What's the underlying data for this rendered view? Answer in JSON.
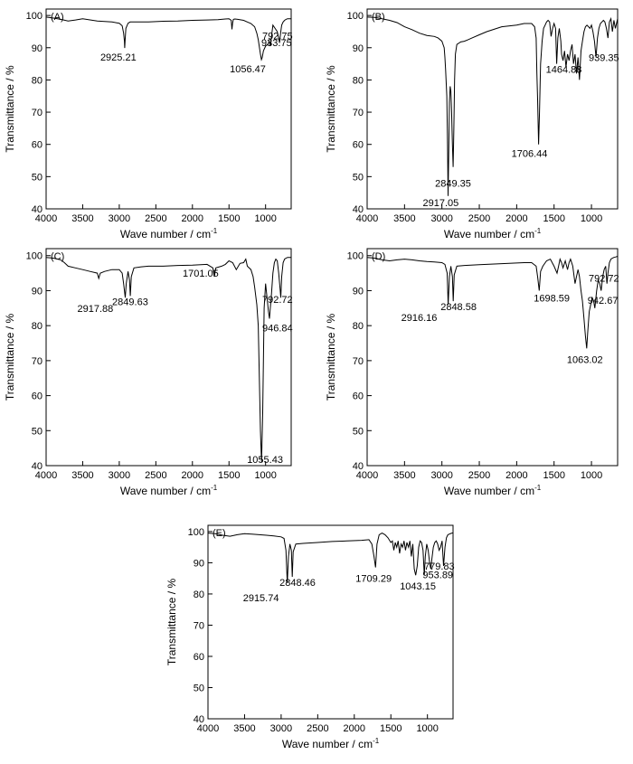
{
  "figure": {
    "ylabel": "Transmittance / %",
    "xlabel": "Wave number / cm",
    "xlabel_sup": "-1",
    "xticks": [
      4000,
      3500,
      3000,
      2500,
      2000,
      1500,
      1000
    ],
    "yticks": [
      40,
      50,
      60,
      70,
      80,
      90,
      100
    ],
    "xlim": [
      4000,
      650
    ],
    "ylim": [
      40,
      102
    ],
    "line_color": "#000000"
  },
  "chart_data": [
    {
      "type": "line",
      "panel": "(A)",
      "x": [
        4000,
        3900,
        3800,
        3700,
        3600,
        3500,
        3300,
        3100,
        3000,
        2960,
        2940,
        2930,
        2925.21,
        2920,
        2910,
        2880,
        2850,
        2800,
        2600,
        2400,
        2200,
        2000,
        1800,
        1650,
        1600,
        1550,
        1500,
        1470,
        1460,
        1450,
        1440,
        1420,
        1380,
        1300,
        1250,
        1200,
        1150,
        1120,
        1100,
        1080,
        1070,
        1056.47,
        1045,
        1030,
        1000,
        970,
        950,
        933.75,
        920,
        900,
        870,
        840,
        820,
        810,
        792.75,
        780,
        760,
        740,
        720,
        700,
        650
      ],
      "y": [
        99.5,
        99.2,
        98.8,
        98.3,
        98.6,
        99.0,
        98.3,
        98.0,
        97.6,
        96.8,
        94.5,
        92.0,
        89.9,
        92.5,
        96.0,
        97.6,
        98.0,
        98.0,
        98.0,
        98.2,
        98.3,
        98.5,
        98.6,
        98.7,
        98.8,
        98.9,
        99.0,
        98.5,
        95.7,
        97.8,
        98.8,
        98.9,
        98.8,
        98.5,
        98.0,
        97.5,
        96.5,
        94.5,
        92.5,
        89.5,
        88.0,
        86.3,
        87.0,
        89.0,
        90.5,
        91.0,
        92.0,
        90.5,
        93.5,
        97.0,
        96.0,
        95.0,
        93.0,
        91.5,
        95.0,
        97.0,
        98.0,
        98.5,
        98.8,
        99.0,
        99.0
      ],
      "peaks": [
        {
          "label": "2925.21",
          "x": 2925.21,
          "y": 89.9
        },
        {
          "label": "1056.47",
          "x": 1056.47,
          "y": 86.3
        },
        {
          "label": "933.75",
          "x": 933.75,
          "y": 90.5
        },
        {
          "label": "792.75",
          "x": 792.75,
          "y": 91.5
        }
      ]
    },
    {
      "type": "line",
      "panel": "(B)",
      "x": [
        4000,
        3900,
        3800,
        3700,
        3600,
        3500,
        3400,
        3300,
        3200,
        3100,
        3050,
        3000,
        2970,
        2960,
        2950,
        2935,
        2925,
        2917.05,
        2910,
        2900,
        2890,
        2880,
        2870,
        2860,
        2849.35,
        2840,
        2830,
        2820,
        2800,
        2750,
        2700,
        2650,
        2600,
        2500,
        2400,
        2200,
        2000,
        1900,
        1800,
        1760,
        1740,
        1730,
        1720,
        1706.44,
        1695,
        1680,
        1660,
        1640,
        1620,
        1600,
        1580,
        1560,
        1540,
        1520,
        1500,
        1480,
        1464.88,
        1450,
        1430,
        1410,
        1400,
        1380,
        1360,
        1340,
        1320,
        1300,
        1280,
        1260,
        1240,
        1220,
        1200,
        1180,
        1160,
        1140,
        1120,
        1100,
        1080,
        1060,
        1040,
        1020,
        1000,
        980,
        960,
        939.35,
        920,
        900,
        880,
        860,
        840,
        820,
        800,
        780,
        760,
        740,
        720,
        700,
        680,
        650
      ],
      "y": [
        99.5,
        99.4,
        99.0,
        98.5,
        97.8,
        96.5,
        95.6,
        94.5,
        93.8,
        93.5,
        93.0,
        92.0,
        90.0,
        87.0,
        83.0,
        75.0,
        60.0,
        44.0,
        55.0,
        73.0,
        78.0,
        76.5,
        70.0,
        60.0,
        53.0,
        65.0,
        80.0,
        88.0,
        91.0,
        91.8,
        92.0,
        92.5,
        93.0,
        94.0,
        95.0,
        96.5,
        97.0,
        97.5,
        97.5,
        96.5,
        93.0,
        82.0,
        74.0,
        60.0,
        70.0,
        85.0,
        92.0,
        96.0,
        97.0,
        98.0,
        98.5,
        98.0,
        93.5,
        96.0,
        97.5,
        96.0,
        85.0,
        93.0,
        96.0,
        92.0,
        88.0,
        86.0,
        89.0,
        84.0,
        88.0,
        86.0,
        89.0,
        91.0,
        85.0,
        88.0,
        82.0,
        87.0,
        80.0,
        89.0,
        92.0,
        95.0,
        96.5,
        97.0,
        96.5,
        96.0,
        97.0,
        95.0,
        92.0,
        87.0,
        93.0,
        96.0,
        97.5,
        98.0,
        98.5,
        98.0,
        96.0,
        93.0,
        98.0,
        99.0,
        95.0,
        98.5,
        96.0,
        99.0
      ],
      "peaks": [
        {
          "label": "2917.05",
          "x": 2917.05,
          "y": 44.0
        },
        {
          "label": "2849.35",
          "x": 2849.35,
          "y": 53.0
        },
        {
          "label": "1706.44",
          "x": 1706.44,
          "y": 60.0
        },
        {
          "label": "1464.88",
          "x": 1464.88,
          "y": 85.0
        },
        {
          "label": "939.35",
          "x": 939.35,
          "y": 87.0
        }
      ]
    },
    {
      "type": "line",
      "panel": "(C)",
      "x": [
        4000,
        3900,
        3800,
        3750,
        3700,
        3600,
        3500,
        3400,
        3300,
        3280,
        3260,
        3200,
        3100,
        3000,
        2960,
        2940,
        2917.88,
        2905,
        2880,
        2860,
        2849.63,
        2835,
        2800,
        2700,
        2600,
        2400,
        2200,
        2000,
        1800,
        1720,
        1701.05,
        1680,
        1600,
        1550,
        1500,
        1450,
        1400,
        1350,
        1300,
        1270,
        1250,
        1200,
        1170,
        1150,
        1120,
        1100,
        1090,
        1080,
        1070,
        1060,
        1055.43,
        1050,
        1040,
        1030,
        1020,
        1000,
        980,
        960,
        946.84,
        935,
        920,
        900,
        880,
        860,
        840,
        820,
        800,
        792.72,
        780,
        760,
        740,
        720,
        700,
        680,
        650
      ],
      "y": [
        99.5,
        99.3,
        98.8,
        98.0,
        97.0,
        96.5,
        96.0,
        95.5,
        95.0,
        93.5,
        95.0,
        95.5,
        96.0,
        96.0,
        95.0,
        92.0,
        88.0,
        92.0,
        95.5,
        93.0,
        88.5,
        94.0,
        96.5,
        96.8,
        97.0,
        97.0,
        97.2,
        97.3,
        97.5,
        96.5,
        94.0,
        96.5,
        97.0,
        97.5,
        98.5,
        98.0,
        96.0,
        97.8,
        98.0,
        99.0,
        97.0,
        96.0,
        94.0,
        91.0,
        86.0,
        80.0,
        70.0,
        60.0,
        50.0,
        44.0,
        41.0,
        45.0,
        55.0,
        70.0,
        85.0,
        92.0,
        88.0,
        84.0,
        82.0,
        85.0,
        89.0,
        95.0,
        98.0,
        99.0,
        98.5,
        95.0,
        90.0,
        88.0,
        94.0,
        98.0,
        99.0,
        99.3,
        99.5,
        99.5,
        99.5
      ],
      "peaks": [
        {
          "label": "2917.88",
          "x": 2917.88,
          "y": 88.0
        },
        {
          "label": "2849.63",
          "x": 2849.63,
          "y": 88.5
        },
        {
          "label": "1701.05",
          "x": 1701.05,
          "y": 94.0
        },
        {
          "label": "1055.43",
          "x": 1055.43,
          "y": 41.0
        },
        {
          "label": "946.84",
          "x": 946.84,
          "y": 82.0
        },
        {
          "label": "792.72",
          "x": 792.72,
          "y": 88.0
        }
      ]
    },
    {
      "type": "line",
      "panel": "(D)",
      "x": [
        4000,
        3900,
        3800,
        3700,
        3600,
        3500,
        3400,
        3300,
        3200,
        3100,
        3000,
        2960,
        2930,
        2916.16,
        2900,
        2880,
        2860,
        2848.58,
        2835,
        2800,
        2700,
        2500,
        2300,
        2100,
        1900,
        1800,
        1740,
        1720,
        1698.59,
        1680,
        1650,
        1600,
        1550,
        1500,
        1460,
        1440,
        1420,
        1400,
        1380,
        1350,
        1320,
        1300,
        1280,
        1250,
        1220,
        1200,
        1180,
        1160,
        1140,
        1120,
        1100,
        1080,
        1063.02,
        1050,
        1030,
        1010,
        990,
        970,
        955,
        942.67,
        930,
        910,
        890,
        870,
        850,
        830,
        810,
        792.72,
        780,
        760,
        740,
        720,
        700,
        680,
        650
      ],
      "y": [
        99.5,
        99.3,
        98.8,
        98.5,
        98.8,
        99.0,
        98.8,
        98.5,
        98.3,
        98.2,
        98.0,
        97.5,
        95.0,
        86.0,
        94.0,
        97.0,
        94.0,
        87.0,
        94.5,
        97.0,
        97.2,
        97.4,
        97.6,
        97.8,
        98.0,
        98.0,
        97.0,
        94.0,
        90.0,
        95.5,
        97.0,
        98.5,
        99.0,
        97.0,
        95.0,
        97.0,
        99.0,
        98.0,
        96.5,
        98.5,
        96.0,
        98.0,
        99.0,
        97.0,
        92.0,
        94.0,
        96.0,
        94.0,
        90.0,
        87.0,
        82.0,
        77.0,
        73.5,
        78.0,
        84.0,
        86.0,
        88.0,
        87.0,
        85.0,
        87.5,
        90.0,
        93.0,
        92.0,
        90.0,
        94.0,
        96.0,
        97.0,
        92.0,
        95.0,
        98.0,
        99.0,
        99.3,
        99.5,
        99.6,
        99.8
      ],
      "peaks": [
        {
          "label": "2916.16",
          "x": 2916.16,
          "y": 86.0
        },
        {
          "label": "2848.58",
          "x": 2848.58,
          "y": 87.0
        },
        {
          "label": "1698.59",
          "x": 1698.59,
          "y": 90.0
        },
        {
          "label": "1063.02",
          "x": 1063.02,
          "y": 73.5
        },
        {
          "label": "942.67",
          "x": 942.67,
          "y": 87.5
        },
        {
          "label": "792.72",
          "x": 792.72,
          "y": 92.0
        }
      ]
    },
    {
      "type": "line",
      "panel": "(E)",
      "x": [
        4000,
        3900,
        3800,
        3700,
        3600,
        3500,
        3400,
        3300,
        3200,
        3100,
        3000,
        2960,
        2935,
        2915.74,
        2900,
        2880,
        2860,
        2848.46,
        2835,
        2800,
        2700,
        2500,
        2300,
        2100,
        1900,
        1800,
        1760,
        1730,
        1709.29,
        1690,
        1660,
        1620,
        1580,
        1540,
        1500,
        1480,
        1460,
        1440,
        1420,
        1400,
        1380,
        1360,
        1340,
        1320,
        1300,
        1280,
        1260,
        1240,
        1220,
        1200,
        1180,
        1160,
        1140,
        1120,
        1100,
        1080,
        1060,
        1043.15,
        1030,
        1010,
        990,
        970,
        953.89,
        940,
        920,
        900,
        880,
        860,
        840,
        820,
        800,
        779.83,
        760,
        740,
        720,
        700,
        680,
        650
      ],
      "y": [
        99.5,
        99.3,
        98.8,
        98.5,
        99.0,
        99.3,
        99.2,
        99.0,
        98.8,
        98.6,
        98.3,
        97.8,
        94.0,
        83.5,
        92.0,
        96.0,
        94.0,
        85.5,
        93.5,
        96.0,
        96.2,
        96.5,
        96.8,
        97.0,
        97.2,
        97.4,
        96.0,
        92.0,
        88.5,
        96.0,
        99.0,
        99.5,
        99.0,
        98.0,
        96.5,
        97.0,
        94.0,
        96.5,
        95.0,
        97.0,
        93.0,
        96.0,
        95.0,
        97.0,
        94.0,
        96.5,
        95.0,
        97.0,
        92.0,
        96.0,
        88.0,
        86.0,
        89.0,
        95.0,
        97.0,
        96.5,
        94.0,
        86.0,
        92.0,
        96.0,
        94.0,
        90.0,
        88.0,
        91.0,
        95.0,
        96.5,
        97.0,
        96.0,
        94.0,
        95.0,
        97.0,
        89.0,
        95.0,
        98.0,
        99.0,
        99.2,
        99.4,
        99.6
      ],
      "peaks": [
        {
          "label": "2915.74",
          "x": 2915.74,
          "y": 83.5
        },
        {
          "label": "2848.46",
          "x": 2848.46,
          "y": 85.5
        },
        {
          "label": "1709.29",
          "x": 1709.29,
          "y": 88.5
        },
        {
          "label": "1043.15",
          "x": 1043.15,
          "y": 86.0
        },
        {
          "label": "953.89",
          "x": 953.89,
          "y": 88.0
        },
        {
          "label": "779.83",
          "x": 779.83,
          "y": 89.0
        }
      ]
    }
  ]
}
